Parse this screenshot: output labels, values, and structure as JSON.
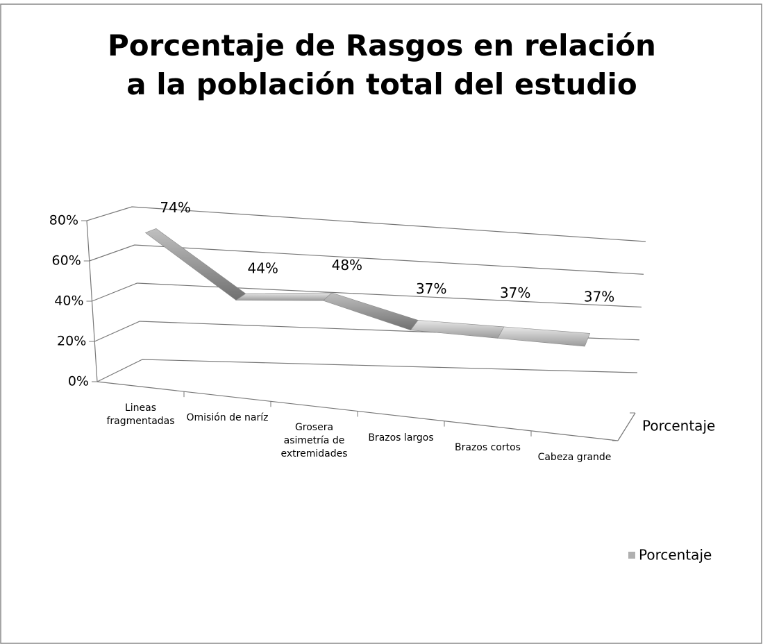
{
  "chart_data": {
    "type": "line3d",
    "title": "Porcentaje de Rasgos en relación a la población total del estudio",
    "categories": [
      "Lineas fragmentadas",
      "Omisión de naríz",
      "Grosera asimetría de extremidades",
      "Brazos largos",
      "Brazos cortos",
      "Cabeza grande"
    ],
    "series": [
      {
        "name": "Porcentaje",
        "color": "#b0b0b0",
        "values": [
          74,
          44,
          48,
          37,
          37,
          37
        ],
        "value_labels": [
          "74%",
          "44%",
          "48%",
          "37%",
          "37%",
          "37%"
        ]
      }
    ],
    "ylim": [
      0,
      80
    ],
    "yticks": [
      {
        "value": 0,
        "label": "0%"
      },
      {
        "value": 20,
        "label": "20%"
      },
      {
        "value": 40,
        "label": "40%"
      },
      {
        "value": 60,
        "label": "60%"
      },
      {
        "value": 80,
        "label": "80%"
      }
    ],
    "grid": true,
    "legend": "right"
  }
}
